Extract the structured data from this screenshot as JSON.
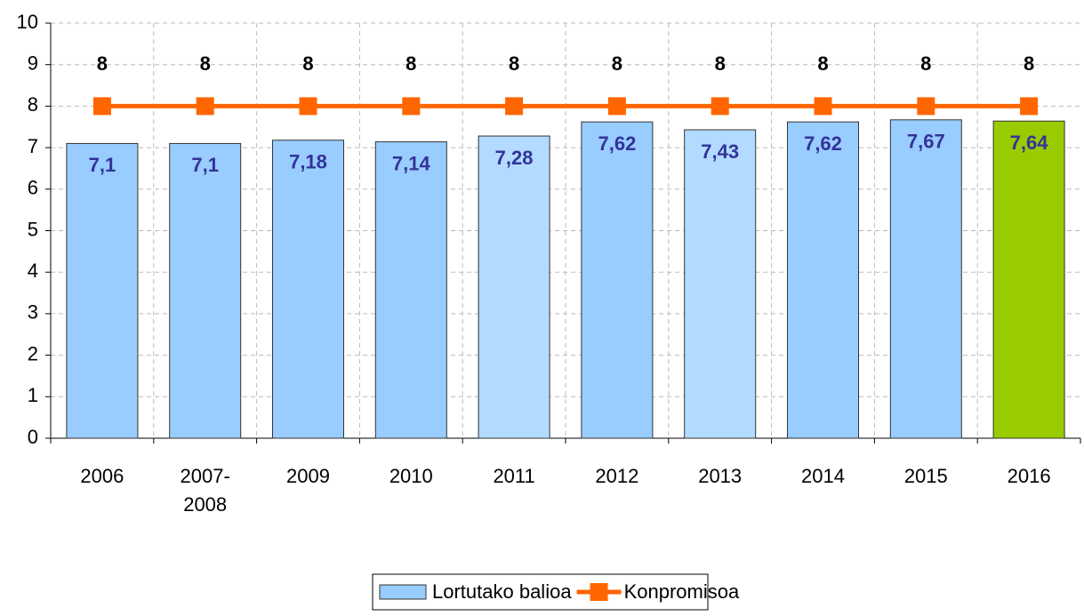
{
  "chart_data": {
    "type": "bar_line",
    "categories": [
      "2006",
      "2007-2008",
      "2009",
      "2010",
      "2011",
      "2012",
      "2013",
      "2014",
      "2015",
      "2016"
    ],
    "series": [
      {
        "name": "Lortutako balioa",
        "type": "bar",
        "color": "#99ccff",
        "colors": [
          "#99ccff",
          "#99ccff",
          "#99ccff",
          "#99ccff",
          "#b3dbff",
          "#99ccff",
          "#b3dbff",
          "#99ccff",
          "#99ccff",
          "#99cc00"
        ],
        "values": [
          7.1,
          7.1,
          7.18,
          7.14,
          7.28,
          7.62,
          7.43,
          7.62,
          7.67,
          7.64
        ],
        "value_labels": [
          "7,1",
          "7,1",
          "7,18",
          "7,14",
          "7,28",
          "7,62",
          "7,43",
          "7,62",
          "7,67",
          "7,64"
        ]
      },
      {
        "name": "Konpromisoa",
        "type": "line",
        "color": "#ff6600",
        "values": [
          8,
          8,
          8,
          8,
          8,
          8,
          8,
          8,
          8,
          8
        ]
      }
    ],
    "ylim": [
      0,
      10
    ],
    "yticks": [
      0,
      1,
      2,
      3,
      4,
      5,
      6,
      7,
      8,
      9,
      10
    ],
    "grid": true,
    "legend": "bottom"
  }
}
